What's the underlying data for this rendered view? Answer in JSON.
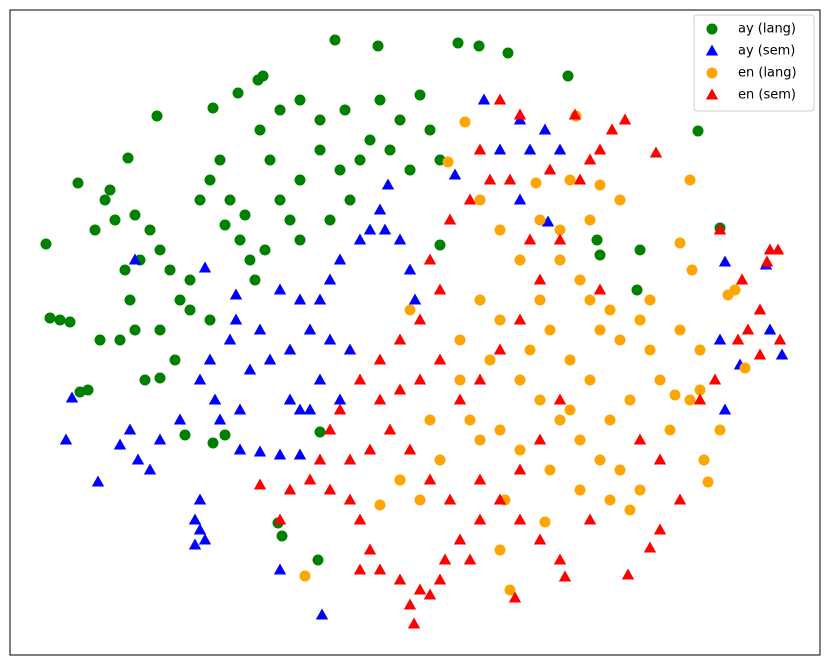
{
  "chart_data": {
    "type": "scatter",
    "xlim": [
      10,
      820
    ],
    "ylim": [
      655,
      10
    ],
    "legend": "upper right",
    "series": [
      {
        "name": "ay (lang)",
        "color": "green",
        "marker": "o",
        "x": [
          335,
          378,
          458,
          479,
          508,
          568,
          698,
          263,
          258,
          238,
          213,
          157,
          128,
          78,
          46,
          50,
          60,
          70,
          100,
          120,
          80,
          88,
          145,
          160,
          185,
          213,
          225,
          278,
          282,
          318,
          320,
          110,
          115,
          135,
          150,
          160,
          170,
          180,
          190,
          200,
          210,
          220,
          230,
          245,
          240,
          250,
          265,
          280,
          300,
          320,
          340,
          360,
          370,
          380,
          400,
          420,
          430,
          440,
          410,
          390,
          350,
          330,
          300,
          290,
          270,
          260,
          280,
          300,
          320,
          345,
          130,
          140,
          160,
          175,
          190,
          210,
          125,
          135,
          255,
          225,
          95,
          105,
          600,
          640,
          720,
          637,
          597,
          440
        ],
        "values": [
          40,
          46,
          43,
          46,
          53,
          76,
          131,
          76,
          80,
          93,
          108,
          116,
          158,
          183,
          244,
          318,
          320,
          322,
          340,
          340,
          392,
          390,
          380,
          378,
          435,
          443,
          435,
          523,
          536,
          560,
          432,
          190,
          220,
          215,
          230,
          250,
          270,
          300,
          310,
          200,
          180,
          160,
          200,
          215,
          240,
          260,
          250,
          200,
          180,
          150,
          170,
          160,
          140,
          100,
          120,
          95,
          130,
          160,
          170,
          150,
          200,
          220,
          240,
          220,
          160,
          130,
          110,
          100,
          120,
          110,
          300,
          260,
          330,
          360,
          280,
          320,
          270,
          330,
          280,
          225,
          230,
          200,
          255,
          250,
          228,
          290,
          240,
          245
        ]
      },
      {
        "name": "ay (sem)",
        "color": "blue",
        "marker": "^",
        "x": [
          484,
          520,
          500,
          530,
          560,
          545,
          388,
          385,
          380,
          360,
          340,
          330,
          320,
          300,
          280,
          260,
          270,
          290,
          310,
          330,
          350,
          320,
          340,
          310,
          290,
          300,
          250,
          230,
          210,
          200,
          215,
          240,
          220,
          180,
          160,
          130,
          120,
          150,
          138,
          98,
          66,
          72,
          195,
          200,
          205,
          195,
          200,
          240,
          260,
          280,
          300,
          280,
          322,
          236,
          236,
          135,
          205,
          410,
          415,
          400,
          370,
          455,
          520,
          782,
          770,
          725,
          740,
          720,
          725,
          766,
          548
        ],
        "values": [
          100,
          120,
          150,
          150,
          150,
          130,
          185,
          230,
          210,
          240,
          260,
          280,
          300,
          300,
          290,
          330,
          360,
          350,
          330,
          340,
          350,
          380,
          400,
          410,
          400,
          410,
          370,
          340,
          360,
          380,
          400,
          410,
          420,
          420,
          440,
          430,
          445,
          470,
          460,
          482,
          440,
          398,
          520,
          530,
          540,
          545,
          500,
          450,
          452,
          455,
          455,
          570,
          615,
          295,
          320,
          260,
          268,
          270,
          300,
          240,
          230,
          175,
          200,
          355,
          330,
          410,
          365,
          340,
          262,
          265,
          222
        ]
      },
      {
        "name": "en (lang)",
        "color": "orange",
        "marker": "o",
        "x": [
          576,
          465,
          448,
          536,
          570,
          600,
          620,
          690,
          680,
          692,
          735,
          560,
          580,
          590,
          610,
          600,
          620,
          640,
          650,
          660,
          630,
          610,
          590,
          570,
          550,
          540,
          530,
          520,
          540,
          560,
          580,
          600,
          620,
          640,
          630,
          610,
          580,
          550,
          520,
          500,
          480,
          470,
          460,
          490,
          500,
          480,
          520,
          500,
          480,
          540,
          560,
          590,
          650,
          680,
          700,
          720,
          708,
          704,
          690,
          675,
          670,
          430,
          440,
          420,
          380,
          400,
          500,
          510,
          305,
          545,
          410,
          460,
          570,
          700,
          745,
          728,
          505
        ],
        "values": [
          116,
          122,
          162,
          183,
          180,
          185,
          200,
          180,
          243,
          270,
          290,
          260,
          280,
          300,
          310,
          330,
          340,
          320,
          350,
          380,
          400,
          420,
          380,
          360,
          330,
          300,
          350,
          380,
          400,
          420,
          440,
          460,
          470,
          490,
          510,
          500,
          490,
          470,
          450,
          430,
          440,
          420,
          380,
          360,
          320,
          300,
          260,
          230,
          200,
          220,
          230,
          220,
          300,
          330,
          390,
          430,
          482,
          460,
          400,
          395,
          430,
          420,
          460,
          500,
          505,
          480,
          550,
          590,
          576,
          522,
          310,
          340,
          410,
          350,
          368,
          295,
          500
        ]
      },
      {
        "name": "en (sem)",
        "color": "red",
        "marker": "^",
        "x": [
          500,
          520,
          575,
          612,
          625,
          656,
          720,
          778,
          767,
          742,
          760,
          748,
          760,
          700,
          715,
          480,
          490,
          470,
          450,
          430,
          440,
          420,
          400,
          380,
          360,
          340,
          330,
          320,
          310,
          330,
          350,
          360,
          370,
          380,
          400,
          410,
          420,
          430,
          440,
          414,
          445,
          460,
          480,
          500,
          520,
          540,
          560,
          565,
          515,
          470,
          450,
          430,
          410,
          390,
          370,
          350,
          380,
          400,
          420,
          440,
          460,
          480,
          500,
          520,
          540,
          560,
          580,
          590,
          600,
          550,
          510,
          530,
          600,
          640,
          660,
          680,
          660,
          628,
          650,
          590,
          520,
          540,
          560,
          480,
          260,
          290,
          280,
          360,
          780,
          738,
          770
        ],
        "values": [
          100,
          115,
          115,
          130,
          120,
          153,
          230,
          250,
          262,
          280,
          310,
          330,
          355,
          400,
          380,
          150,
          180,
          200,
          220,
          260,
          290,
          320,
          340,
          360,
          380,
          410,
          430,
          460,
          480,
          490,
          500,
          520,
          550,
          570,
          580,
          605,
          590,
          595,
          580,
          624,
          560,
          540,
          520,
          500,
          520,
          540,
          560,
          577,
          598,
          560,
          500,
          480,
          450,
          430,
          450,
          460,
          400,
          390,
          380,
          360,
          400,
          380,
          350,
          320,
          280,
          240,
          180,
          160,
          150,
          170,
          180,
          240,
          290,
          440,
          460,
          500,
          530,
          575,
          548,
          520,
          470,
          440,
          400,
          480,
          485,
          490,
          520,
          570,
          340,
          340,
          250
        ]
      }
    ]
  }
}
